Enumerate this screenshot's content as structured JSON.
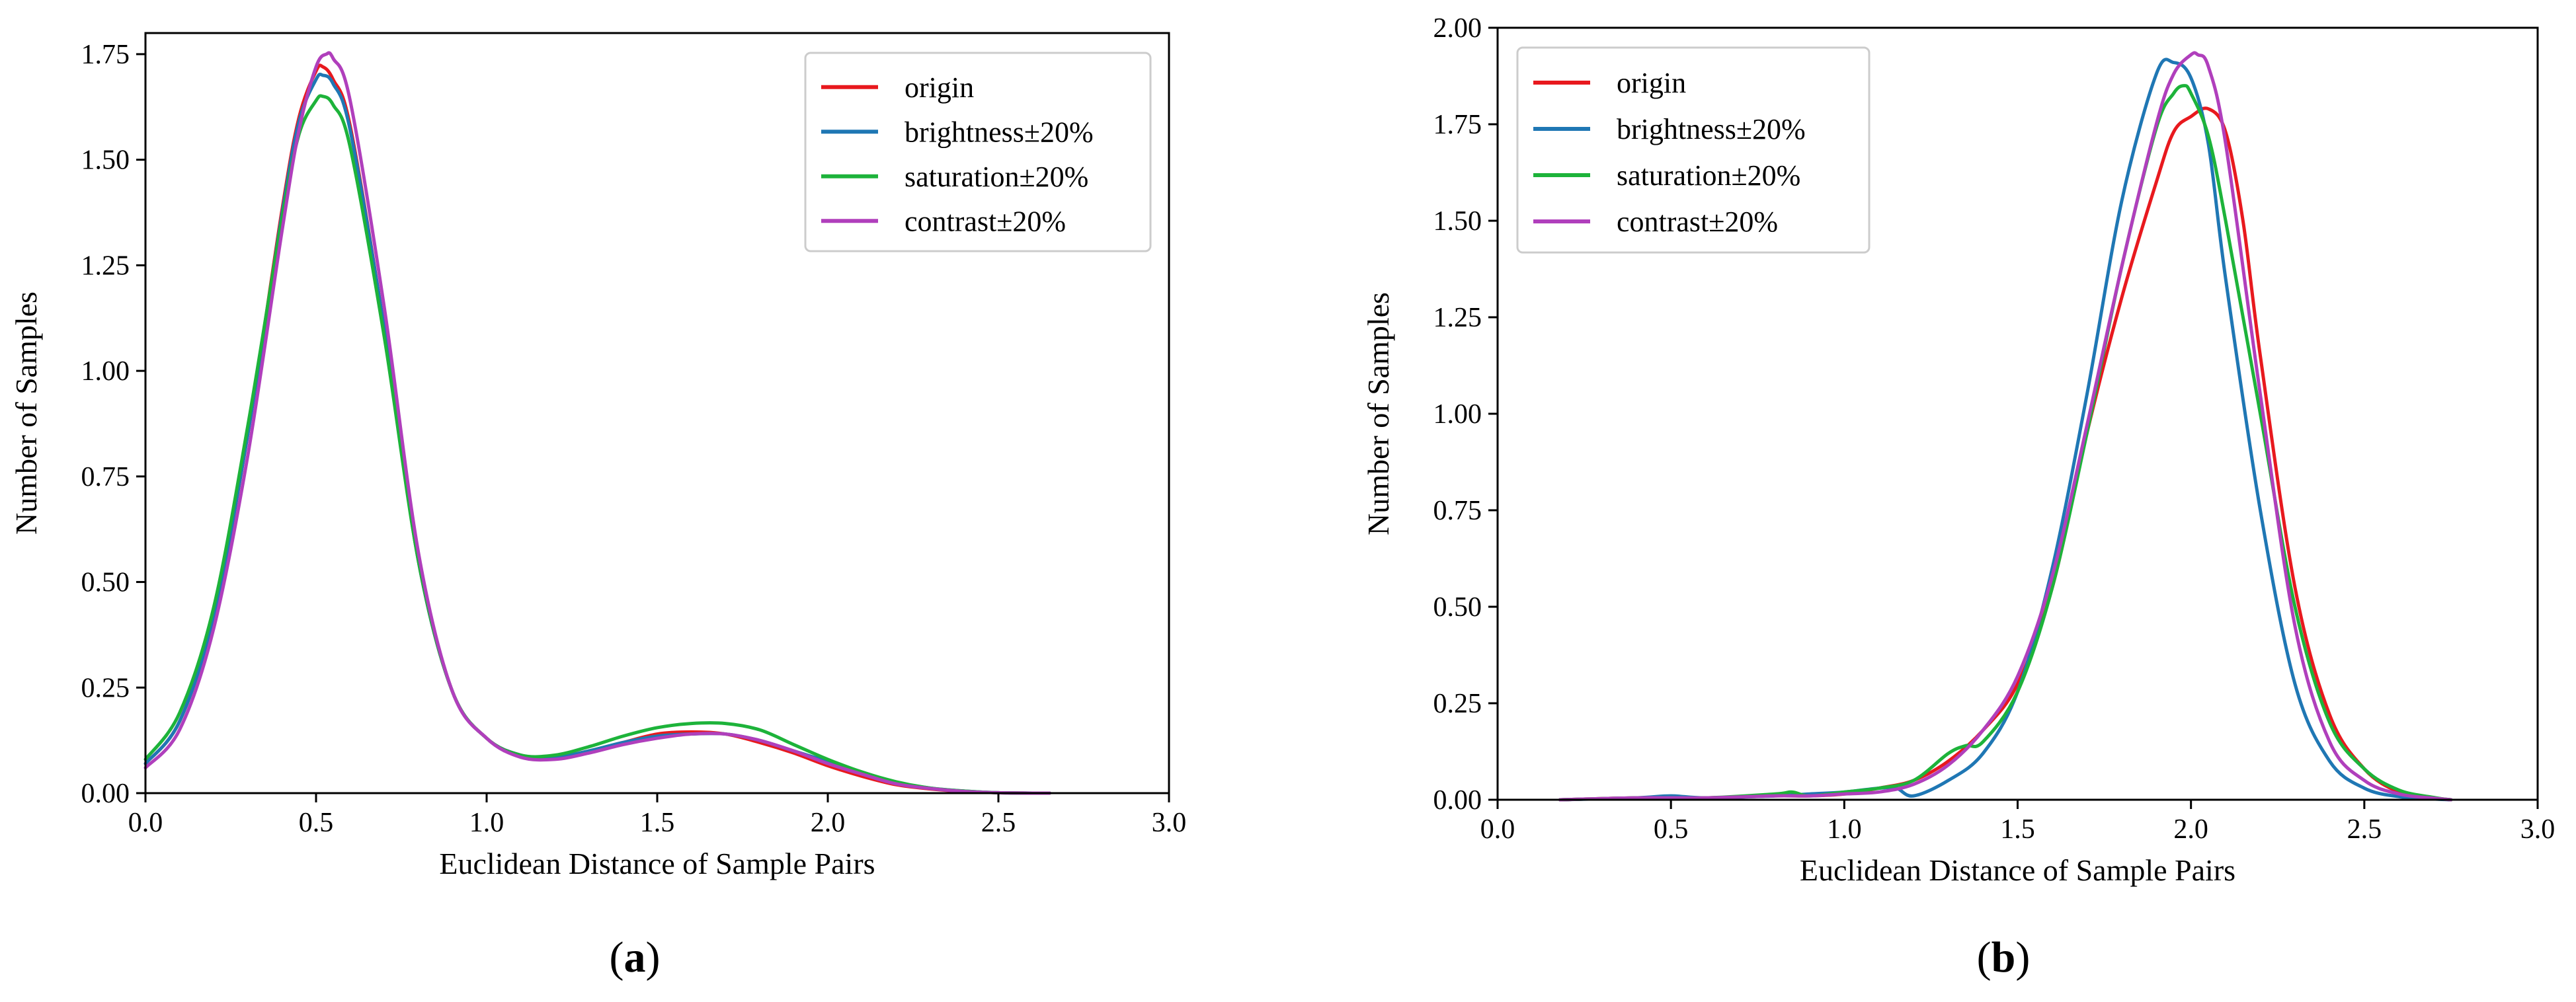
{
  "chart_data": [
    {
      "type": "line",
      "panel_label": "a",
      "xlabel": "Euclidean Distance of Sample Pairs",
      "ylabel": "Number of Samples",
      "xlim": [
        0.0,
        3.0
      ],
      "ylim": [
        0.0,
        1.8
      ],
      "xticks": [
        "0.0",
        "0.5",
        "1.0",
        "1.5",
        "2.0",
        "2.5",
        "3.0"
      ],
      "yticks": [
        "0.00",
        "0.25",
        "0.50",
        "0.75",
        "1.00",
        "1.25",
        "1.50",
        "1.75"
      ],
      "grid": false,
      "legend_position": "top-right",
      "series": [
        {
          "name": "origin",
          "color": "#e8191e",
          "x": [
            0.0,
            0.1,
            0.2,
            0.3,
            0.4,
            0.45,
            0.5,
            0.52,
            0.55,
            0.6,
            0.7,
            0.8,
            0.9,
            1.0,
            1.1,
            1.2,
            1.3,
            1.4,
            1.5,
            1.6,
            1.7,
            1.8,
            1.9,
            2.0,
            2.1,
            2.2,
            2.3,
            2.4,
            2.5,
            2.6,
            2.65
          ],
          "y": [
            0.07,
            0.17,
            0.42,
            0.85,
            1.38,
            1.6,
            1.71,
            1.72,
            1.69,
            1.58,
            1.1,
            0.55,
            0.24,
            0.13,
            0.09,
            0.085,
            0.1,
            0.12,
            0.14,
            0.145,
            0.14,
            0.12,
            0.095,
            0.065,
            0.04,
            0.02,
            0.01,
            0.004,
            0.001,
            0.0,
            0.0
          ]
        },
        {
          "name": "brightness±20%",
          "color": "#1f77b4",
          "x": [
            0.0,
            0.1,
            0.2,
            0.3,
            0.4,
            0.45,
            0.5,
            0.52,
            0.55,
            0.6,
            0.7,
            0.8,
            0.9,
            1.0,
            1.1,
            1.2,
            1.3,
            1.4,
            1.5,
            1.6,
            1.7,
            1.8,
            1.9,
            2.0,
            2.1,
            2.2,
            2.3,
            2.4,
            2.5,
            2.6,
            2.65
          ],
          "y": [
            0.07,
            0.17,
            0.42,
            0.85,
            1.37,
            1.59,
            1.69,
            1.7,
            1.68,
            1.57,
            1.1,
            0.55,
            0.24,
            0.13,
            0.09,
            0.085,
            0.1,
            0.12,
            0.135,
            0.14,
            0.14,
            0.125,
            0.1,
            0.075,
            0.05,
            0.025,
            0.012,
            0.005,
            0.001,
            0.0,
            0.0
          ]
        },
        {
          "name": "saturation±20%",
          "color": "#1db33a",
          "x": [
            0.0,
            0.1,
            0.2,
            0.3,
            0.4,
            0.45,
            0.5,
            0.52,
            0.55,
            0.6,
            0.7,
            0.8,
            0.9,
            1.0,
            1.1,
            1.2,
            1.3,
            1.4,
            1.5,
            1.6,
            1.7,
            1.8,
            1.9,
            2.0,
            2.1,
            2.2,
            2.3,
            2.4,
            2.5,
            2.6,
            2.65
          ],
          "y": [
            0.08,
            0.19,
            0.44,
            0.87,
            1.36,
            1.56,
            1.64,
            1.65,
            1.63,
            1.53,
            1.08,
            0.55,
            0.24,
            0.13,
            0.09,
            0.09,
            0.11,
            0.135,
            0.155,
            0.165,
            0.165,
            0.15,
            0.115,
            0.08,
            0.05,
            0.027,
            0.012,
            0.005,
            0.001,
            0.0,
            0.0
          ]
        },
        {
          "name": "contrast±20%",
          "color": "#b03fbc",
          "x": [
            0.0,
            0.1,
            0.2,
            0.3,
            0.4,
            0.45,
            0.5,
            0.53,
            0.55,
            0.6,
            0.7,
            0.8,
            0.9,
            1.0,
            1.1,
            1.2,
            1.3,
            1.4,
            1.5,
            1.6,
            1.7,
            1.8,
            1.9,
            2.0,
            2.1,
            2.2,
            2.3,
            2.4,
            2.5,
            2.6,
            2.65
          ],
          "y": [
            0.06,
            0.15,
            0.39,
            0.8,
            1.33,
            1.57,
            1.72,
            1.75,
            1.74,
            1.64,
            1.15,
            0.57,
            0.24,
            0.13,
            0.085,
            0.08,
            0.095,
            0.115,
            0.13,
            0.14,
            0.14,
            0.125,
            0.1,
            0.07,
            0.045,
            0.022,
            0.011,
            0.004,
            0.001,
            0.0,
            0.0
          ]
        }
      ]
    },
    {
      "type": "line",
      "panel_label": "b",
      "xlabel": "Euclidean Distance of Sample Pairs",
      "ylabel": "Number of Samples",
      "xlim": [
        0.0,
        3.0
      ],
      "ylim": [
        0.0,
        2.0
      ],
      "xticks": [
        "0.0",
        "0.5",
        "1.0",
        "1.5",
        "2.0",
        "2.5",
        "3.0"
      ],
      "yticks": [
        "0.00",
        "0.25",
        "0.50",
        "0.75",
        "1.00",
        "1.25",
        "1.50",
        "1.75",
        "2.00"
      ],
      "grid": false,
      "legend_position": "top-left",
      "series": [
        {
          "name": "origin",
          "color": "#e8191e",
          "x": [
            0.18,
            0.4,
            0.6,
            0.8,
            0.9,
            1.0,
            1.1,
            1.2,
            1.3,
            1.4,
            1.5,
            1.6,
            1.7,
            1.8,
            1.9,
            1.95,
            2.0,
            2.05,
            2.1,
            2.15,
            2.2,
            2.3,
            2.4,
            2.5,
            2.6,
            2.7,
            2.75
          ],
          "y": [
            0.0,
            0.005,
            0.005,
            0.01,
            0.01,
            0.015,
            0.03,
            0.05,
            0.1,
            0.18,
            0.3,
            0.55,
            0.95,
            1.3,
            1.6,
            1.73,
            1.77,
            1.79,
            1.73,
            1.5,
            1.15,
            0.55,
            0.22,
            0.08,
            0.02,
            0.005,
            0.0
          ]
        },
        {
          "name": "brightness±20%",
          "color": "#1f77b4",
          "x": [
            0.18,
            0.4,
            0.5,
            0.6,
            0.8,
            0.9,
            1.0,
            1.1,
            1.15,
            1.2,
            1.3,
            1.4,
            1.5,
            1.6,
            1.7,
            1.8,
            1.9,
            1.95,
            2.0,
            2.05,
            2.1,
            2.2,
            2.3,
            2.4,
            2.5,
            2.6,
            2.7,
            2.75
          ],
          "y": [
            0.0,
            0.005,
            0.01,
            0.005,
            0.01,
            0.015,
            0.02,
            0.03,
            0.03,
            0.01,
            0.05,
            0.12,
            0.28,
            0.6,
            1.05,
            1.55,
            1.88,
            1.91,
            1.87,
            1.7,
            1.35,
            0.75,
            0.3,
            0.1,
            0.03,
            0.008,
            0.002,
            0.0
          ]
        },
        {
          "name": "saturation±20%",
          "color": "#1db33a",
          "x": [
            0.18,
            0.4,
            0.6,
            0.8,
            0.85,
            0.9,
            1.0,
            1.1,
            1.2,
            1.3,
            1.35,
            1.4,
            1.5,
            1.6,
            1.7,
            1.8,
            1.9,
            1.95,
            1.98,
            2.0,
            2.05,
            2.1,
            2.2,
            2.3,
            2.4,
            2.5,
            2.6,
            2.7,
            2.75
          ],
          "y": [
            0.0,
            0.005,
            0.005,
            0.015,
            0.02,
            0.01,
            0.02,
            0.03,
            0.05,
            0.12,
            0.14,
            0.15,
            0.28,
            0.55,
            0.95,
            1.38,
            1.74,
            1.83,
            1.85,
            1.83,
            1.72,
            1.5,
            1.0,
            0.5,
            0.2,
            0.08,
            0.025,
            0.006,
            0.0
          ]
        },
        {
          "name": "contrast±20%",
          "color": "#b03fbc",
          "x": [
            0.18,
            0.4,
            0.6,
            0.8,
            0.9,
            1.0,
            1.1,
            1.2,
            1.3,
            1.4,
            1.5,
            1.6,
            1.7,
            1.8,
            1.9,
            1.95,
            2.0,
            2.02,
            2.05,
            2.1,
            2.2,
            2.3,
            2.4,
            2.5,
            2.6,
            2.7,
            2.75
          ],
          "y": [
            0.0,
            0.005,
            0.005,
            0.01,
            0.01,
            0.015,
            0.02,
            0.04,
            0.09,
            0.18,
            0.32,
            0.58,
            0.97,
            1.38,
            1.75,
            1.88,
            1.93,
            1.93,
            1.9,
            1.7,
            1.05,
            0.45,
            0.15,
            0.05,
            0.015,
            0.004,
            0.0
          ]
        }
      ]
    }
  ]
}
